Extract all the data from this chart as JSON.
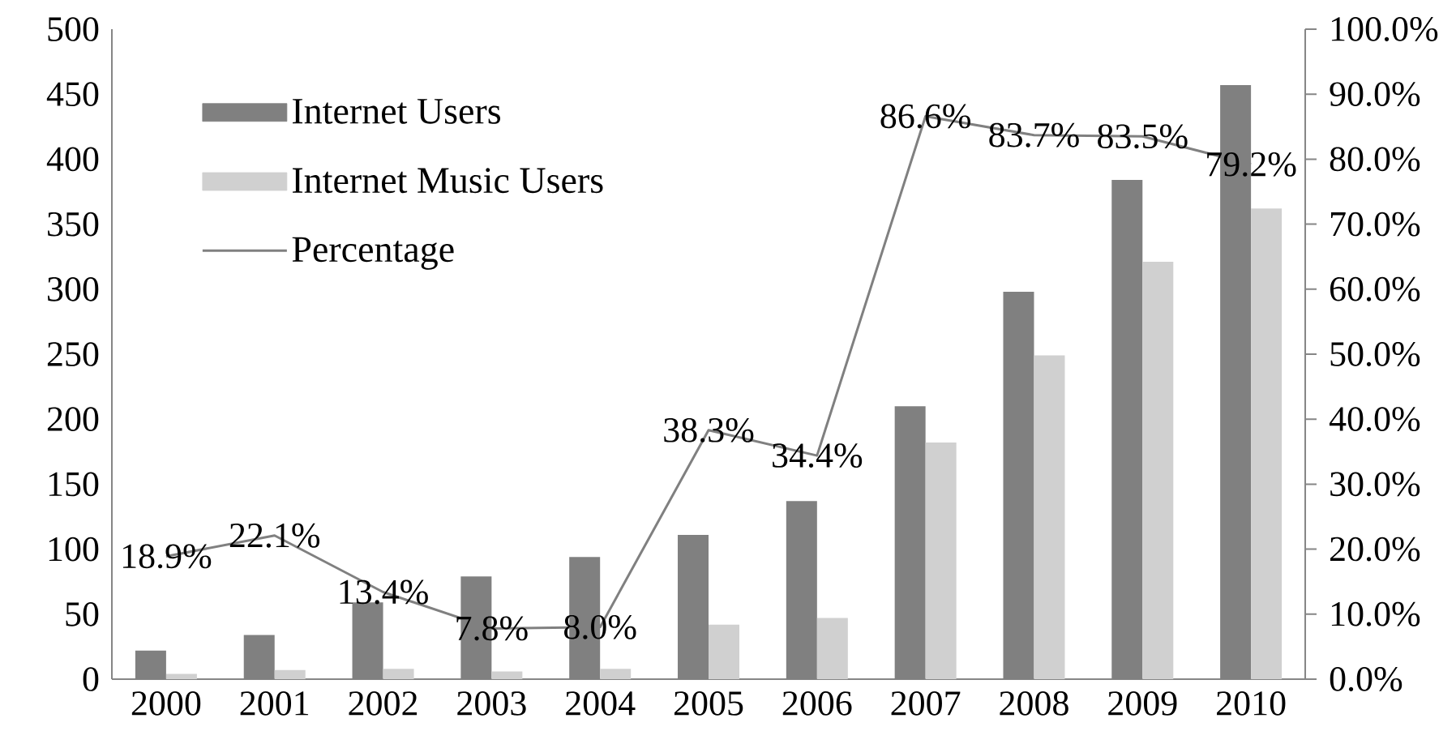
{
  "chart_data": {
    "type": "bar",
    "categories": [
      "2000",
      "2001",
      "2002",
      "2003",
      "2004",
      "2005",
      "2006",
      "2007",
      "2008",
      "2009",
      "2010"
    ],
    "series": [
      {
        "name": "Internet Users",
        "color": "#808080",
        "values": [
          22,
          34,
          59,
          79,
          94,
          111,
          137,
          210,
          298,
          384,
          457
        ]
      },
      {
        "name": "Internet Music Users",
        "color": "#d0d0d0",
        "values": [
          4,
          7,
          8,
          6,
          8,
          42,
          47,
          182,
          249,
          321,
          362
        ]
      },
      {
        "name": "Percentage",
        "type": "line",
        "axis": "y2",
        "color": "#808080",
        "values": [
          18.9,
          22.1,
          13.4,
          7.8,
          8.0,
          38.3,
          34.4,
          86.6,
          83.7,
          83.5,
          79.2
        ],
        "value_labels": [
          "18.9%",
          "22.1%",
          "13.4%",
          "7.8%",
          "8.0%",
          "38.3%",
          "34.4%",
          "86.6%",
          "83.7%",
          "83.5%",
          "79.2%"
        ]
      }
    ],
    "ylim": [
      0,
      500
    ],
    "yticks": [
      0,
      50,
      100,
      150,
      200,
      250,
      300,
      350,
      400,
      450,
      500
    ],
    "y2lim": [
      0,
      100
    ],
    "y2ticks": [
      {
        "value": 0,
        "label": "0.0%"
      },
      {
        "value": 10,
        "label": "10.0%"
      },
      {
        "value": 20,
        "label": "20.0%"
      },
      {
        "value": 30,
        "label": "30.0%"
      },
      {
        "value": 40,
        "label": "40.0%"
      },
      {
        "value": 50,
        "label": "50.0%"
      },
      {
        "value": 60,
        "label": "60.0%"
      },
      {
        "value": 70,
        "label": "70.0%"
      },
      {
        "value": 80,
        "label": "80.0%"
      },
      {
        "value": 90,
        "label": "90.0%"
      },
      {
        "value": 100,
        "label": "100.0%"
      }
    ],
    "legend": "top left"
  }
}
